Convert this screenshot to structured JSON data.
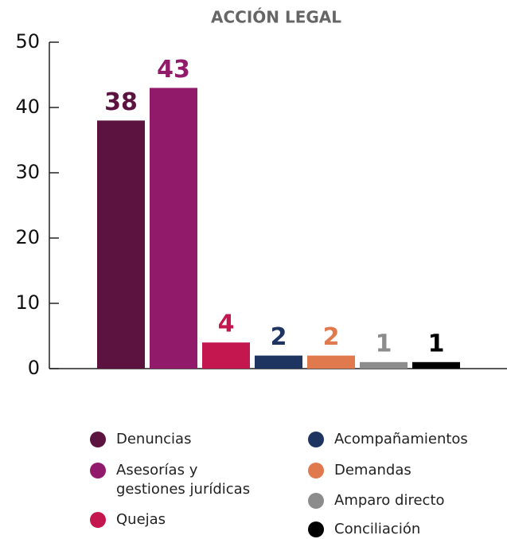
{
  "chart_data": {
    "type": "bar",
    "title": "ACCIÓN LEGAL",
    "categories": [
      "Denuncias",
      "Asesorías y gestiones jurídicas",
      "Quejas",
      "Acompañamientos",
      "Demandas",
      "Amparo directo",
      "Conciliación"
    ],
    "values": [
      38,
      43,
      4,
      2,
      2,
      1,
      1
    ],
    "colors": [
      "#5c1340",
      "#921a6a",
      "#c4174f",
      "#1e3461",
      "#e07a4e",
      "#8c8c8c",
      "#000000"
    ],
    "ylim": [
      0,
      50
    ],
    "yticks": [
      0,
      10,
      20,
      30,
      40,
      50
    ]
  }
}
